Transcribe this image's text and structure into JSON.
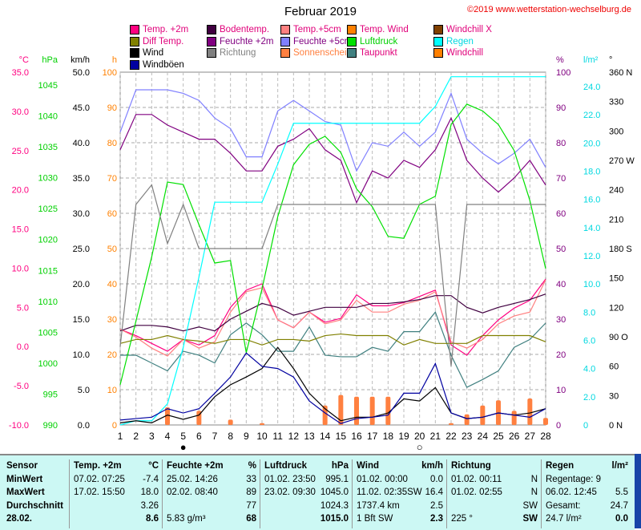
{
  "title": "Februar 2019",
  "copyright": "©2019 www.wetterstation-wechselburg.de",
  "legend": [
    {
      "label": "Temp. +2m",
      "color": "#ff0080",
      "text": "#e0007a"
    },
    {
      "label": "Bodentemp.",
      "color": "#400040",
      "text": "#e0007a"
    },
    {
      "label": "Temp.+5cm",
      "color": "#ff8080",
      "text": "#e0007a"
    },
    {
      "label": "Temp. Wind",
      "color": "#ff8000",
      "text": "#e0007a"
    },
    {
      "label": "Windchill X",
      "color": "#804000",
      "text": "#e0007a"
    },
    {
      "label": "Diff Temp.",
      "color": "#808000",
      "text": "#e0007a"
    },
    {
      "label": "Feuchte +2m",
      "color": "#800080",
      "text": "#800080"
    },
    {
      "label": "Feuchte +5cm",
      "color": "#8080ff",
      "text": "#800080"
    },
    {
      "label": "Luftdruck",
      "color": "#00e000",
      "text": "#00d000"
    },
    {
      "label": "Regen",
      "color": "#00ffff",
      "text": "#00d8e0"
    },
    {
      "label": "Wind",
      "color": "#000000",
      "text": "#000"
    },
    {
      "label": "Richtung",
      "color": "#808080",
      "text": "#808080"
    },
    {
      "label": "Sonnenschein",
      "color": "#ff8040",
      "text": "#ff8040"
    },
    {
      "label": "Taupunkt",
      "color": "#408080",
      "text": "#e0007a"
    },
    {
      "label": "Windchill",
      "color": "#ff8000",
      "text": "#e0007a"
    },
    {
      "label": "Windböen",
      "color": "#0000a0",
      "text": "#000"
    }
  ],
  "chart_data": {
    "type": "line",
    "title": "Februar 2019",
    "x": [
      1,
      2,
      3,
      4,
      5,
      6,
      7,
      8,
      9,
      10,
      11,
      12,
      13,
      14,
      15,
      16,
      17,
      18,
      19,
      20,
      21,
      22,
      23,
      24,
      25,
      26,
      27,
      28
    ],
    "axes": {
      "celsius": {
        "label": "°C",
        "min": -10,
        "max": 35,
        "ticks": [
          "35.0",
          "30.0",
          "25.0",
          "20.0",
          "15.0",
          "10.0",
          "5.0",
          "0.0",
          "-5.0",
          "-10.0"
        ]
      },
      "hpa": {
        "label": "hPa",
        "min": 990,
        "max": 1045,
        "ticks": [
          "1045",
          "1040",
          "1035",
          "1030",
          "1025",
          "1020",
          "1015",
          "1010",
          "1005",
          "1000",
          "995",
          "990"
        ]
      },
      "kmh": {
        "label": "km/h",
        "min": 0,
        "max": 50,
        "ticks": [
          "50.0",
          "45.0",
          "40.0",
          "35.0",
          "30.0",
          "25.0",
          "20.0",
          "15.0",
          "10.0",
          "5.0",
          "0.0"
        ]
      },
      "hours": {
        "label": "h",
        "min": 0,
        "max": 100,
        "ticks": [
          "100",
          "90",
          "80",
          "70",
          "60",
          "50",
          "40",
          "30",
          "20",
          "10",
          "0"
        ]
      },
      "percent": {
        "label": "%",
        "min": 0,
        "max": 100,
        "ticks": [
          "100",
          "90",
          "80",
          "70",
          "60",
          "50",
          "40",
          "30",
          "20",
          "10",
          "0"
        ]
      },
      "rain": {
        "label": "l/m²",
        "min": 0,
        "max": 24,
        "ticks": [
          "24.0",
          "22.0",
          "20.0",
          "18.0",
          "16.0",
          "14.0",
          "12.0",
          "10.0",
          "8.0",
          "6.0",
          "4.0",
          "2.0",
          "0"
        ]
      },
      "degrees": {
        "label": "°",
        "min": 0,
        "max": 360,
        "ticks": [
          "360 N",
          "330",
          "300",
          "270 W",
          "240",
          "210",
          "180 S",
          "150",
          "120",
          "90 O",
          "60",
          "30",
          "0 N"
        ]
      }
    },
    "series": [
      {
        "name": "Temp. +2m",
        "axis": "celsius",
        "color": "#ff0080",
        "values": [
          2.2,
          1.4,
          0.4,
          -0.6,
          0.9,
          0.2,
          1.4,
          5.0,
          7.2,
          8.0,
          3.4,
          2.4,
          4.4,
          3.1,
          3.6,
          6.6,
          5.2,
          5.2,
          5.6,
          6.4,
          7.2,
          0.2,
          -1.1,
          1.4,
          3.4,
          4.9,
          5.9,
          8.6
        ]
      },
      {
        "name": "Temp.+5cm",
        "axis": "celsius",
        "color": "#ff8080",
        "values": [
          2.2,
          1.2,
          -0.2,
          -1.2,
          0.9,
          -0.2,
          0.6,
          4.4,
          7.0,
          7.5,
          3.4,
          2.4,
          4.4,
          2.9,
          3.4,
          5.9,
          4.4,
          4.4,
          5.4,
          5.9,
          7.0,
          0.6,
          -0.2,
          0.9,
          2.9,
          3.9,
          4.4,
          8.5
        ]
      },
      {
        "name": "Bodentemp.",
        "axis": "celsius",
        "color": "#400040",
        "values": [
          2.0,
          2.7,
          2.7,
          2.5,
          2.0,
          2.5,
          2.0,
          3.5,
          4.5,
          5.5,
          5.0,
          4.0,
          4.5,
          5.0,
          5.0,
          5.0,
          5.5,
          5.5,
          5.7,
          6.0,
          6.5,
          6.5,
          5.0,
          4.3,
          5.0,
          5.5,
          6.0,
          6.7
        ]
      },
      {
        "name": "Taupunkt",
        "axis": "celsius",
        "color": "#408080",
        "values": [
          -1.1,
          -1.1,
          -2.1,
          -3.1,
          -0.6,
          -1.1,
          -2.1,
          1.5,
          3.0,
          1.5,
          -0.6,
          -0.6,
          2.5,
          -1.1,
          -1.3,
          -1.3,
          -0.1,
          -0.6,
          1.9,
          1.9,
          4.4,
          -1.1,
          -5.2,
          -4.2,
          -3.1,
          -0.1,
          0.9,
          3.0
        ]
      },
      {
        "name": "Diff Temp.",
        "axis": "celsius",
        "color": "#808000",
        "values": [
          0.4,
          0.9,
          0.9,
          1.4,
          0.9,
          0.7,
          0.4,
          0.9,
          0.9,
          0.2,
          0.9,
          0.9,
          0.7,
          1.4,
          1.6,
          1.4,
          1.4,
          1.4,
          0.2,
          0.9,
          0.4,
          0.4,
          0.4,
          1.4,
          1.4,
          1.4,
          1.4,
          0.6
        ]
      },
      {
        "name": "Feuchte +2m",
        "axis": "percent",
        "color": "#800080",
        "values": [
          78,
          88,
          88,
          85,
          83,
          81,
          81,
          77,
          72,
          72,
          79,
          81,
          84,
          78,
          75,
          63,
          72,
          70,
          75,
          73,
          78,
          87,
          75,
          70,
          66,
          70,
          75,
          68
        ]
      },
      {
        "name": "Feuchte +5cm",
        "axis": "percent",
        "color": "#8080ff",
        "values": [
          83,
          95,
          95,
          95,
          94,
          92,
          87,
          84,
          76,
          76,
          89,
          92,
          89,
          86,
          85,
          72,
          80,
          79,
          83,
          79,
          83,
          94,
          81,
          77,
          74,
          77,
          81,
          73
        ]
      },
      {
        "name": "Luftdruck",
        "axis": "hpa",
        "color": "#00e000",
        "values": [
          996.5,
          1006.8,
          1017.2,
          1029.3,
          1028.9,
          1022.4,
          1016.2,
          1016.6,
          1001.7,
          1012.0,
          1023.7,
          1032.1,
          1035.4,
          1036.7,
          1034.1,
          1028.2,
          1025.3,
          1020.5,
          1020.2,
          1025.7,
          1027.0,
          1038.6,
          1041.9,
          1040.8,
          1038.6,
          1034.4,
          1026.3,
          1015.3
        ]
      },
      {
        "name": "Regen",
        "axis": "rain",
        "color": "#00ffff",
        "values": [
          0,
          0.3,
          0.3,
          1.5,
          5.5,
          10.5,
          15.8,
          15.8,
          15.8,
          15.8,
          18.5,
          21.4,
          21.4,
          21.4,
          21.4,
          21.4,
          21.4,
          21.4,
          21.4,
          21.4,
          22.6,
          24.7,
          24.7,
          24.7,
          24.7,
          24.7,
          24.7,
          24.7
        ]
      },
      {
        "name": "Richtung",
        "axis": "degrees",
        "color": "#808080",
        "values": [
          80,
          225,
          245,
          185,
          225,
          180,
          180,
          180,
          180,
          180,
          225,
          225,
          225,
          225,
          225,
          225,
          225,
          225,
          225,
          225,
          225,
          60,
          225,
          225,
          225,
          225,
          225,
          225
        ]
      },
      {
        "name": "Wind",
        "axis": "kmh",
        "color": "#000000",
        "values": [
          0.3,
          0.6,
          0.3,
          1.4,
          0.8,
          1.4,
          4.0,
          5.7,
          6.8,
          8.0,
          11.0,
          8.0,
          4.5,
          2.3,
          0.6,
          1.1,
          1.1,
          1.7,
          3.7,
          3.4,
          5.3,
          1.7,
          0.9,
          1.1,
          1.7,
          1.4,
          1.7,
          2.3
        ]
      },
      {
        "name": "Windböen",
        "axis": "kmh",
        "color": "#0000a0",
        "values": [
          0.7,
          0.9,
          1.1,
          2.3,
          1.7,
          2.3,
          4.5,
          6.8,
          10.2,
          8.3,
          8.0,
          6.8,
          3.4,
          1.7,
          0.2,
          0.9,
          1.1,
          1.4,
          4.5,
          4.5,
          8.7,
          1.7,
          0.9,
          1.1,
          1.7,
          1.4,
          1.1,
          2.3
        ]
      },
      {
        "name": "Sonnenschein",
        "axis": "hours",
        "type": "bar",
        "color": "#ff8040",
        "values": [
          0,
          0,
          0,
          5,
          0,
          4,
          0,
          1.5,
          0,
          0.5,
          0,
          0,
          0,
          5.5,
          8.5,
          8,
          8,
          8,
          0,
          0,
          0,
          0.5,
          3,
          5.5,
          7,
          4,
          7.5,
          2
        ]
      }
    ],
    "moon": [
      {
        "day": 5,
        "symbol": "●"
      },
      {
        "day": 20,
        "symbol": "○"
      }
    ]
  },
  "table": {
    "sensor": [
      "Sensor",
      "MinWert",
      "MaxWert",
      "Durchschnitt",
      "28.02."
    ],
    "blocks": [
      {
        "rows": [
          [
            "Temp. +2m",
            "°C"
          ],
          [
            "07.02.  07:25",
            "-7.4"
          ],
          [
            "17.02.  15:50",
            "18.0"
          ],
          [
            "",
            "3.26"
          ],
          [
            "",
            "8.6"
          ]
        ]
      },
      {
        "rows": [
          [
            "Feuchte +2m",
            "%"
          ],
          [
            "25.02.  14:26",
            "33"
          ],
          [
            "02.02.  08:40",
            "89"
          ],
          [
            "",
            "77"
          ],
          [
            " 5.83 g/m³",
            "68"
          ]
        ]
      },
      {
        "rows": [
          [
            "Luftdruck",
            "hPa"
          ],
          [
            "01.02.  23:50",
            "995.1"
          ],
          [
            "23.02.  09:30",
            "1045.0"
          ],
          [
            "",
            "1024.3"
          ],
          [
            "",
            "1015.0"
          ]
        ]
      },
      {
        "rows": [
          [
            "Wind",
            "km/h"
          ],
          [
            "01.02.  00:00",
            "0.0"
          ],
          [
            "11.02.  02:35SW",
            "16.4"
          ],
          [
            "1737.4 km",
            "2.5"
          ],
          [
            " 1 Bft SW",
            "2.3"
          ]
        ]
      },
      {
        "rows": [
          [
            "Richtung",
            ""
          ],
          [
            "01.02.  00:11",
            "N"
          ],
          [
            "01.02.  02:55",
            "N"
          ],
          [
            "",
            "SW"
          ],
          [
            " 225 °",
            "SW"
          ]
        ]
      },
      {
        "rows": [
          [
            "Regen",
            "l/m²"
          ],
          [
            "Regentage: 9",
            ""
          ],
          [
            "06.02.  12:45",
            "5.5"
          ],
          [
            "Gesamt:",
            "24.7"
          ],
          [
            " 24.7 l/m²",
            "0.0"
          ]
        ]
      }
    ]
  }
}
